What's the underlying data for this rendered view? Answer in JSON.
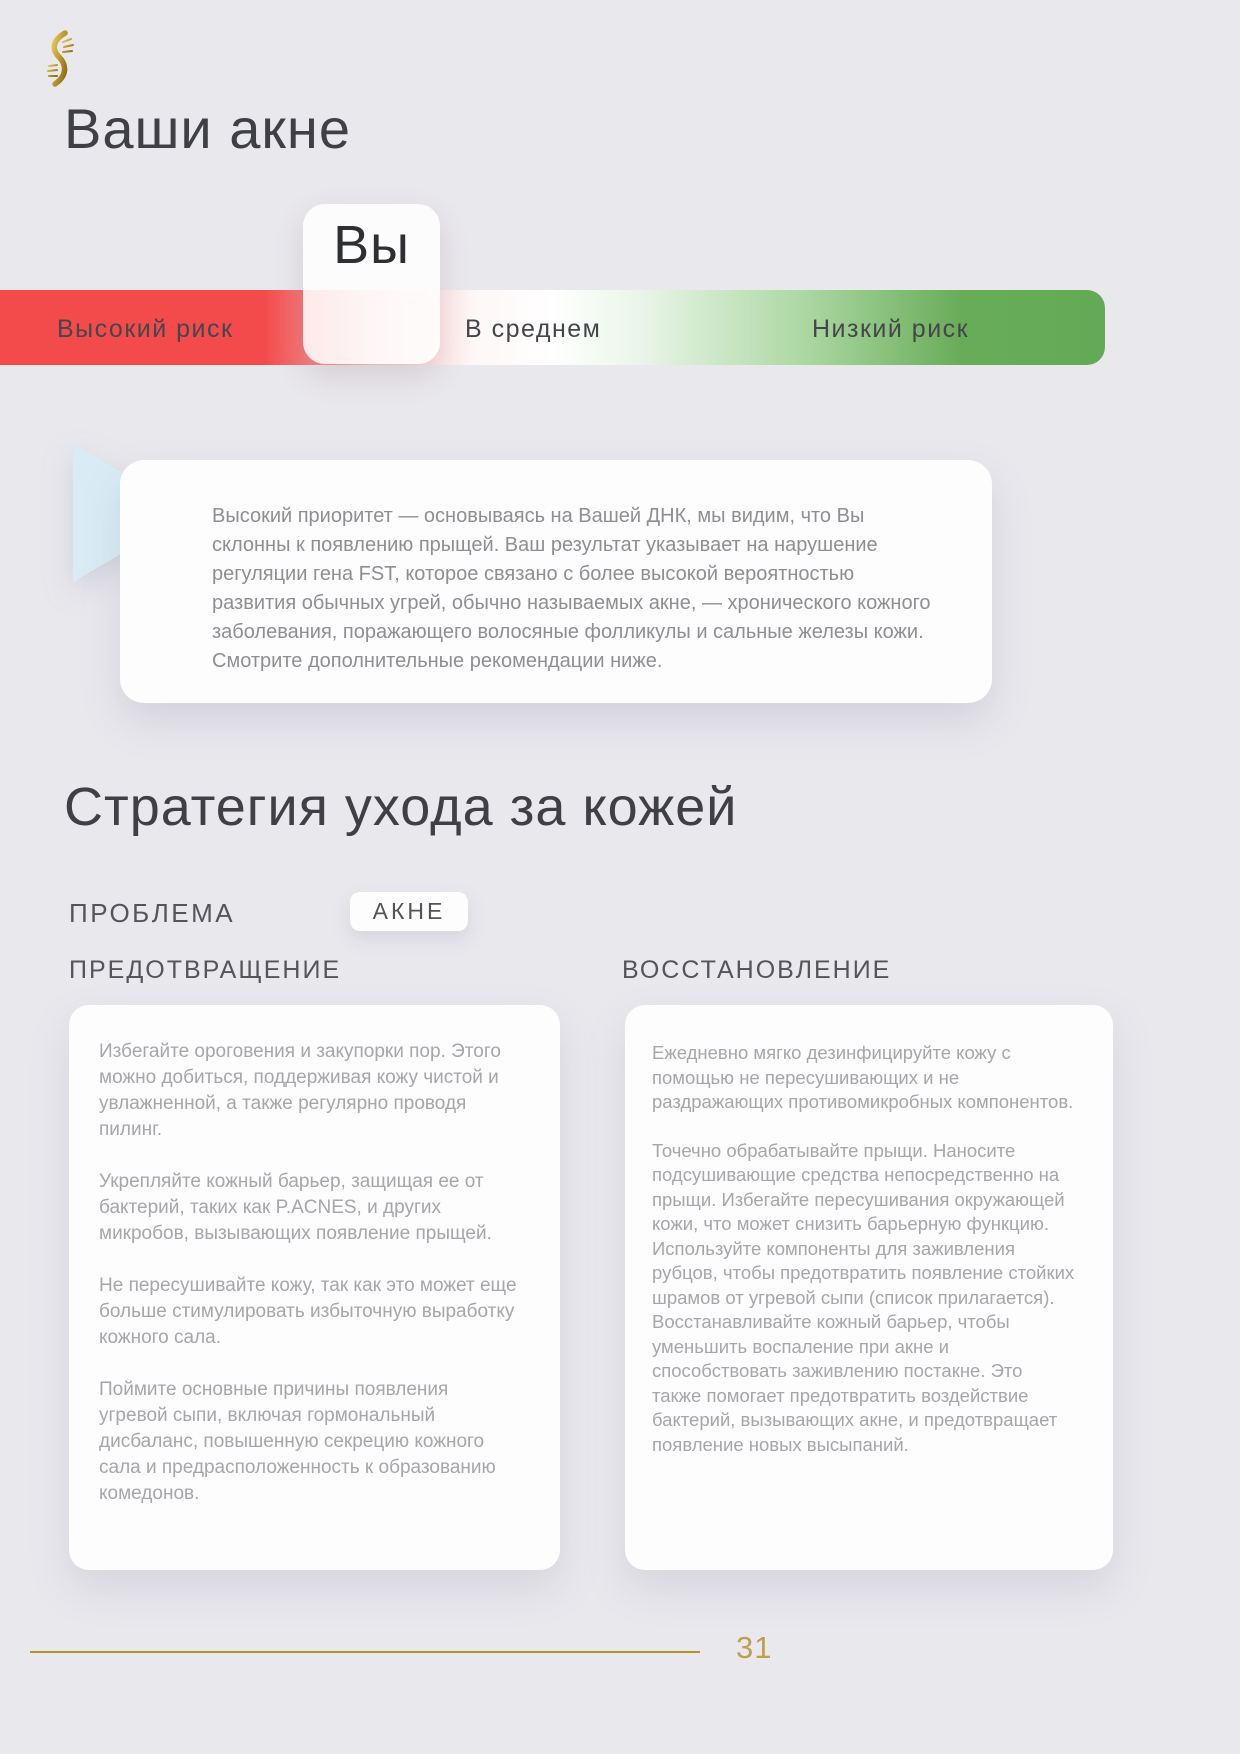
{
  "page": {
    "title": "Ваши акне",
    "page_number": "31",
    "background_color": "#e9e8ed",
    "accent_gold": "#b2922f"
  },
  "risk_scale": {
    "marker_label": "Вы",
    "labels": {
      "high": "Высокий риск",
      "mid": "В среднем",
      "low": "Низкий риск"
    },
    "colors": {
      "high_risk": "#f34b4c",
      "low_risk": "#64aa56"
    }
  },
  "summary": {
    "text": "Высокий приоритет — основываясь на Вашей ДНК, мы видим, что Вы склонны к появлению прыщей. Ваш результат указывает на нарушение регуляции гена FST, которое связано с более высокой вероятностью развития обычных угрей, обычно называемых акне, — хронического кожного заболевания, поражающего волосяные фолликулы и сальные железы кожи. Смотрите дополнительные рекомендации ниже."
  },
  "strategy": {
    "heading": "Стратегия ухода за кожей",
    "problem_label": "ПРОБЛЕМА",
    "problem_value": "АКНЕ",
    "columns": [
      {
        "header": "ПРЕДОТВРАЩЕНИЕ",
        "paragraphs": [
          "Избегайте ороговения и закупорки пор. Этого можно добиться, поддерживая кожу чистой и увлажненной, а также регулярно проводя пилинг.",
          "Укрепляйте кожный барьер, защищая ее от бактерий, таких как P.ACNES, и других микробов, вызывающих появление прыщей.",
          "Не пересушивайте кожу, так как это может еще больше стимулировать избыточную выработку кожного сала.",
          "Поймите основные причины появления угревой сыпи, включая гормональный дисбаланс, повышенную секрецию кожного сала и предрасположенность к образованию комедонов."
        ]
      },
      {
        "header": "ВОССТАНОВЛЕНИЕ",
        "paragraphs": [
          "Ежедневно мягко дезинфицируйте кожу с помощью не пересушивающих и не раздражающих противомикробных компонентов.",
          "Точечно обрабатывайте прыщи. Наносите подсушивающие средства непосредственно на прыщи. Избегайте пересушивания окружающей кожи, что может снизить барьерную функцию. Используйте компоненты для заживления рубцов, чтобы предотвратить появление стойких шрамов от угревой сыпи (список прилагается). Восстанавливайте кожный барьер, чтобы уменьшить воспаление при акне и способствовать заживлению постакне. Это также помогает предотвратить воздействие бактерий, вызывающих акне, и предотвращает появление новых высыпаний."
        ]
      }
    ]
  },
  "icons": {
    "logo": "dna-icon",
    "pointer": "triangle-right-icon"
  }
}
